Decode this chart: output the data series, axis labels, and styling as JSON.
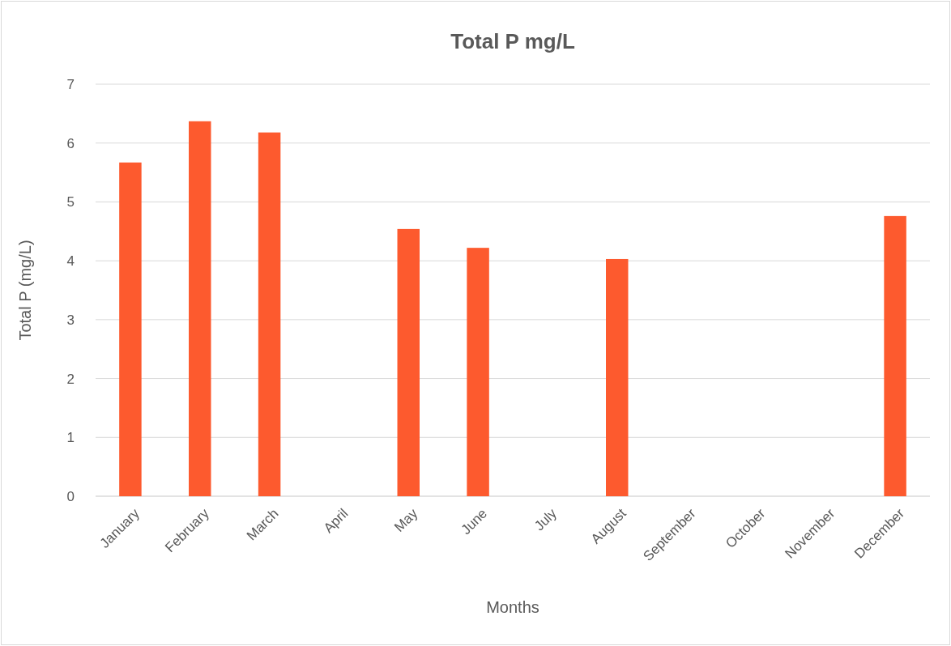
{
  "chart_data": {
    "type": "bar",
    "title": "Total P mg/L",
    "xlabel": "Months",
    "ylabel": "Total P (mg/L)",
    "categories": [
      "January",
      "February",
      "March",
      "April",
      "May",
      "June",
      "July",
      "August",
      "September",
      "October",
      "November",
      "December"
    ],
    "values": [
      5.67,
      6.37,
      6.18,
      null,
      4.54,
      4.22,
      null,
      4.03,
      null,
      null,
      null,
      4.76
    ],
    "color": "#fd5a2e",
    "ylim": [
      0,
      7
    ],
    "yticks": [
      0,
      1,
      2,
      3,
      4,
      5,
      6,
      7
    ],
    "grid": "y"
  }
}
